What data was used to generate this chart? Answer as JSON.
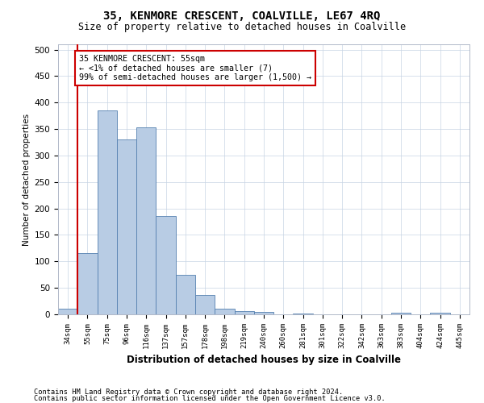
{
  "title": "35, KENMORE CRESCENT, COALVILLE, LE67 4RQ",
  "subtitle": "Size of property relative to detached houses in Coalville",
  "xlabel": "Distribution of detached houses by size in Coalville",
  "ylabel": "Number of detached properties",
  "categories": [
    "34sqm",
    "55sqm",
    "75sqm",
    "96sqm",
    "116sqm",
    "137sqm",
    "157sqm",
    "178sqm",
    "198sqm",
    "219sqm",
    "240sqm",
    "260sqm",
    "281sqm",
    "301sqm",
    "322sqm",
    "342sqm",
    "363sqm",
    "383sqm",
    "404sqm",
    "424sqm",
    "445sqm"
  ],
  "values": [
    10,
    115,
    385,
    330,
    353,
    186,
    75,
    37,
    10,
    6,
    4,
    0,
    1,
    0,
    0,
    0,
    0,
    3,
    0,
    3,
    0
  ],
  "bar_color": "#b8cce4",
  "bar_edge_color": "#5580b0",
  "vline_color": "#cc0000",
  "vline_x": 0.5,
  "annotation_text": "35 KENMORE CRESCENT: 55sqm\n← <1% of detached houses are smaller (7)\n99% of semi-detached houses are larger (1,500) →",
  "annotation_box_color": "#ffffff",
  "annotation_box_edge": "#cc0000",
  "ylim": [
    0,
    510
  ],
  "yticks": [
    0,
    50,
    100,
    150,
    200,
    250,
    300,
    350,
    400,
    450,
    500
  ],
  "footer1": "Contains HM Land Registry data © Crown copyright and database right 2024.",
  "footer2": "Contains public sector information licensed under the Open Government Licence v3.0.",
  "bg_color": "#ffffff",
  "grid_color": "#c8d4e4"
}
